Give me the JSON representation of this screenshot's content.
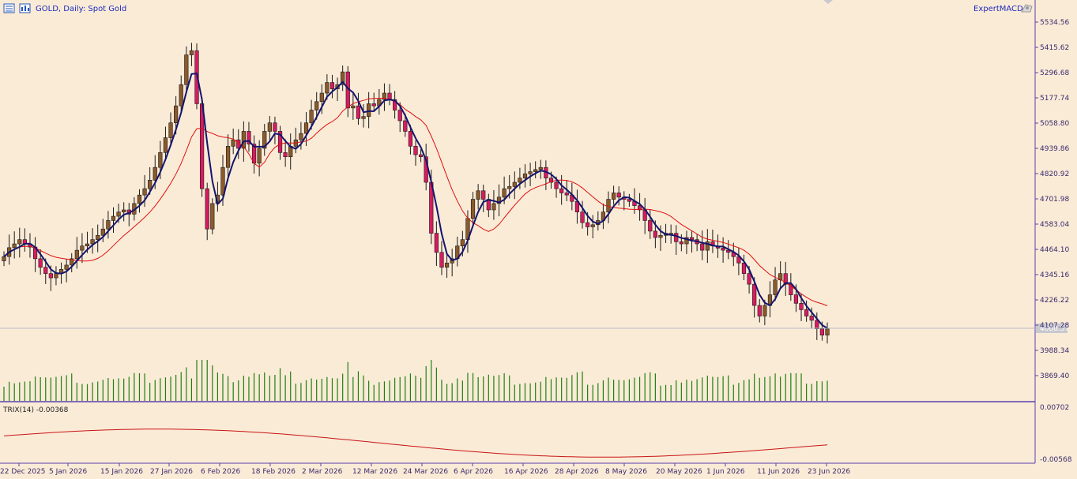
{
  "window": {
    "symbol_title": "GOLD, Daily:  Spot Gold"
  },
  "expert": {
    "name": "ExpertMACD"
  },
  "price_axis": {
    "labels": [
      "5534.56",
      "5415.62",
      "5296.68",
      "5177.74",
      "5058.80",
      "4939.86",
      "4820.92",
      "4701.98",
      "4583.04",
      "4464.10",
      "4345.16",
      "4226.22",
      "4107.28",
      "3988.34",
      "3869.40"
    ],
    "current_price": "4088.57"
  },
  "indicator": {
    "label": "TRIX(14) -0.00368",
    "axis_labels": [
      "0.00702",
      "-0.00568"
    ]
  },
  "time_axis": {
    "labels": [
      "22 Dec 2025",
      "5 Jan 2026",
      "15 Jan 2026",
      "27 Jan 2026",
      "6 Feb 2026",
      "18 Feb 2026",
      "2 Mar 2026",
      "12 Mar 2026",
      "24 Mar 2026",
      "6 Apr 2026",
      "16 Apr 2026",
      "28 Apr 2026",
      "8 May 2026",
      "20 May 2026",
      "1 Jun 2026",
      "11 Jun 2026",
      "23 Jun 2026"
    ]
  },
  "colors": {
    "background": "#faebd7",
    "bull_candle": "#8b5a2b",
    "bear_candle": "#d81b60",
    "fast_ma": "#14146e",
    "slow_ma": "#e01010",
    "volume": "#1f7f10",
    "trix": "#c81414",
    "grid_line": "#b9b9c8",
    "axis_text": "#3b2a6b"
  },
  "chart_data": {
    "type": "candlestick",
    "symbol": "GOLD",
    "timeframe": "Daily",
    "ylim": [
      3830,
      5580
    ],
    "closes": [
      4430,
      4472,
      4490,
      4510,
      4490,
      4475,
      4420,
      4380,
      4350,
      4330,
      4350,
      4370,
      4390,
      4420,
      4460,
      4480,
      4490,
      4510,
      4530,
      4560,
      4600,
      4620,
      4640,
      4650,
      4630,
      4680,
      4720,
      4750,
      4790,
      4850,
      4920,
      4990,
      5060,
      5140,
      5240,
      5380,
      5400,
      5150,
      4750,
      4560,
      4680,
      4720,
      4850,
      4950,
      4980,
      4940,
      5020,
      4960,
      4870,
      4940,
      5020,
      5060,
      5020,
      4920,
      4900,
      4950,
      4980,
      5010,
      5060,
      5120,
      5160,
      5200,
      5250,
      5220,
      5240,
      5300,
      5130,
      5140,
      5080,
      5090,
      5150,
      5140,
      5170,
      5200,
      5170,
      5120,
      5070,
      5020,
      4950,
      4910,
      4900,
      4780,
      4540,
      4450,
      4380,
      4400,
      4420,
      4480,
      4510,
      4610,
      4700,
      4740,
      4700,
      4650,
      4680,
      4710,
      4750,
      4760,
      4780,
      4800,
      4820,
      4830,
      4840,
      4850,
      4800,
      4780,
      4750,
      4730,
      4720,
      4690,
      4640,
      4590,
      4570,
      4580,
      4600,
      4640,
      4700,
      4730,
      4710,
      4700,
      4690,
      4670,
      4650,
      4600,
      4550,
      4520,
      4530,
      4540,
      4540,
      4500,
      4490,
      4520,
      4510,
      4490,
      4460,
      4500,
      4480,
      4470,
      4460,
      4450,
      4430,
      4400,
      4350,
      4300,
      4200,
      4150,
      4200,
      4250,
      4320,
      4350,
      4300,
      4250,
      4210,
      4180,
      4150,
      4130,
      4090,
      4060,
      4089
    ]
  }
}
